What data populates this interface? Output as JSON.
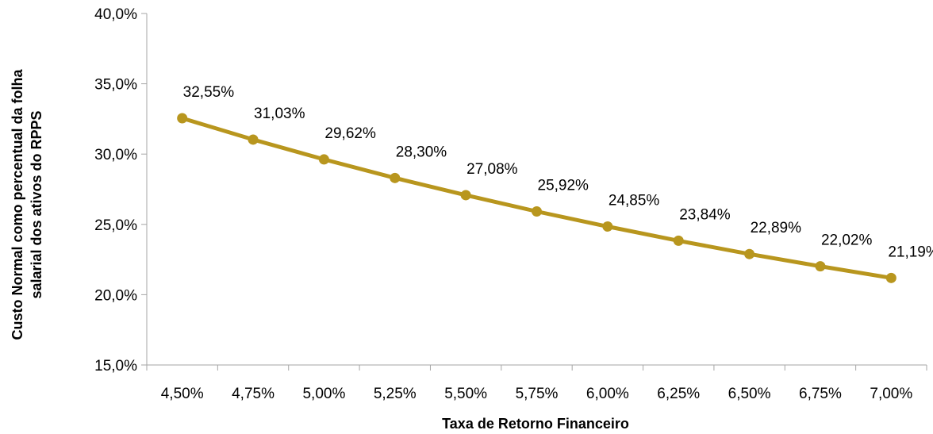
{
  "chart_data": {
    "type": "line",
    "title": "",
    "xlabel": "Taxa de Retorno Financeiro",
    "ylabel_line1": "Custo Normal como percentual da folha",
    "ylabel_line2": "salarial dos ativos do RPPS",
    "categories": [
      "4,50%",
      "4,75%",
      "5,00%",
      "5,25%",
      "5,50%",
      "5,75%",
      "6,00%",
      "6,25%",
      "6,50%",
      "6,75%",
      "7,00%"
    ],
    "series": [
      {
        "values": [
          32.55,
          31.03,
          29.62,
          28.3,
          27.08,
          25.92,
          24.85,
          23.84,
          22.89,
          22.02,
          21.19
        ],
        "labels": [
          "32,55%",
          "31,03%",
          "29,62%",
          "28,30%",
          "27,08%",
          "25,92%",
          "24,85%",
          "23,84%",
          "22,89%",
          "22,02%",
          "21,19%"
        ],
        "color": "#B8961E"
      }
    ],
    "ylim": [
      15,
      40
    ],
    "yticks": [
      15,
      20,
      25,
      30,
      35,
      40
    ],
    "ytick_labels": [
      "15,0%",
      "20,0%",
      "25,0%",
      "30,0%",
      "35,0%",
      "40,0%"
    ],
    "grid": false,
    "axis_color": "#A6A6A6"
  }
}
